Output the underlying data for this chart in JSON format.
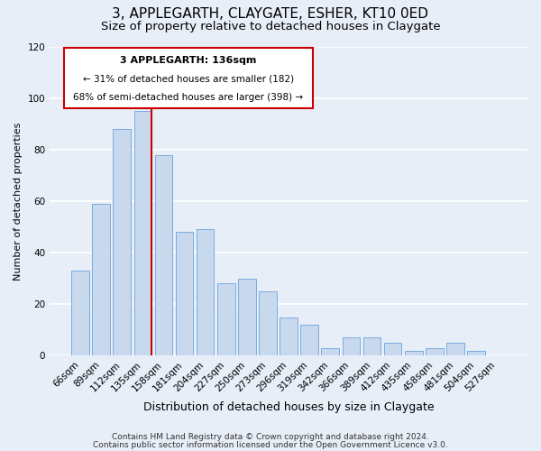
{
  "title": "3, APPLEGARTH, CLAYGATE, ESHER, KT10 0ED",
  "subtitle": "Size of property relative to detached houses in Claygate",
  "xlabel": "Distribution of detached houses by size in Claygate",
  "ylabel": "Number of detached properties",
  "bar_labels": [
    "66sqm",
    "89sqm",
    "112sqm",
    "135sqm",
    "158sqm",
    "181sqm",
    "204sqm",
    "227sqm",
    "250sqm",
    "273sqm",
    "296sqm",
    "319sqm",
    "342sqm",
    "366sqm",
    "389sqm",
    "412sqm",
    "435sqm",
    "458sqm",
    "481sqm",
    "504sqm",
    "527sqm"
  ],
  "bar_values": [
    33,
    59,
    88,
    95,
    78,
    48,
    49,
    28,
    30,
    25,
    15,
    12,
    3,
    7,
    7,
    5,
    2,
    3,
    5,
    2,
    0
  ],
  "bar_color": "#c8d9ee",
  "bar_edge_color": "#7aace0",
  "highlight_index": 3,
  "highlight_line_color": "#cc0000",
  "ylim": [
    0,
    120
  ],
  "yticks": [
    0,
    20,
    40,
    60,
    80,
    100,
    120
  ],
  "annotation_title": "3 APPLEGARTH: 136sqm",
  "annotation_line1": "← 31% of detached houses are smaller (182)",
  "annotation_line2": "68% of semi-detached houses are larger (398) →",
  "annotation_box_color": "#ffffff",
  "annotation_box_edge_color": "#cc0000",
  "footer1": "Contains HM Land Registry data © Crown copyright and database right 2024.",
  "footer2": "Contains public sector information licensed under the Open Government Licence v3.0.",
  "background_color": "#e8eef8",
  "plot_background_color": "#e8eef8",
  "grid_color": "#ffffff",
  "title_fontsize": 11,
  "subtitle_fontsize": 9.5,
  "xlabel_fontsize": 9,
  "ylabel_fontsize": 8,
  "tick_fontsize": 7.5,
  "footer_fontsize": 6.5
}
